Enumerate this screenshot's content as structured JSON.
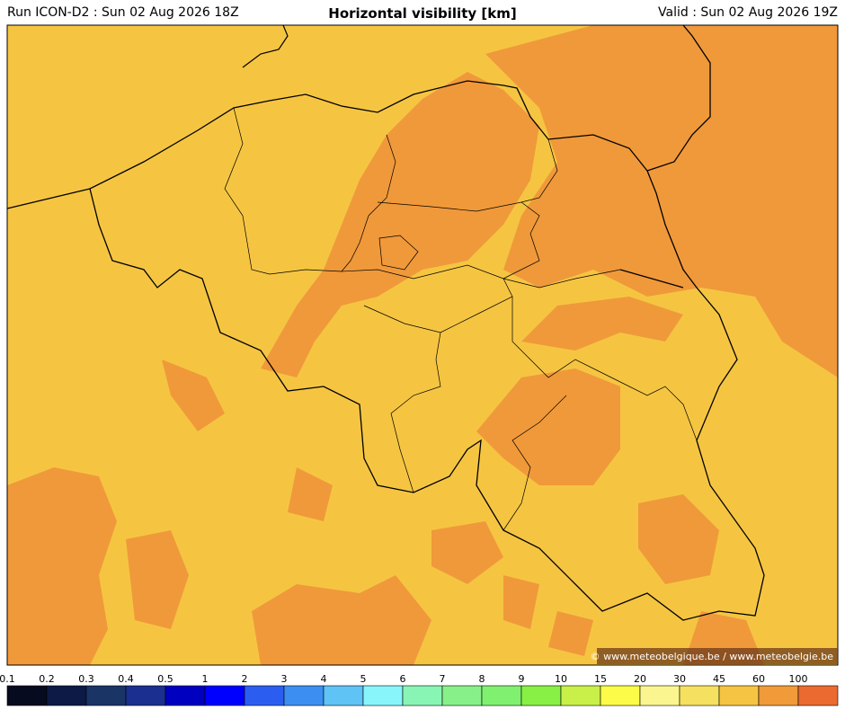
{
  "header": {
    "run": "Run ICON-D2 : Sun 02 Aug 2026 18Z",
    "title": "Horizontal visibility [km]",
    "valid": "Valid : Sun 02 Aug 2026 19Z"
  },
  "map": {
    "credit": "© www.meteobelgique.be / www.meteobelgie.be"
  },
  "colorbar": {
    "items": [
      {
        "label": "0.1",
        "color": "#060b1f"
      },
      {
        "label": "0.2",
        "color": "#0c1a45"
      },
      {
        "label": "0.3",
        "color": "#1a3466"
      },
      {
        "label": "0.4",
        "color": "#1a2f8f"
      },
      {
        "label": "0.5",
        "color": "#0000c0"
      },
      {
        "label": "1",
        "color": "#0000ff"
      },
      {
        "label": "2",
        "color": "#2b5ef0"
      },
      {
        "label": "3",
        "color": "#3c8ff0"
      },
      {
        "label": "4",
        "color": "#5fc3f5"
      },
      {
        "label": "5",
        "color": "#88f5fa"
      },
      {
        "label": "6",
        "color": "#88f5b5"
      },
      {
        "label": "7",
        "color": "#88f088"
      },
      {
        "label": "8",
        "color": "#80f070"
      },
      {
        "label": "9",
        "color": "#88f045"
      },
      {
        "label": "10",
        "color": "#c8f048"
      },
      {
        "label": "15",
        "color": "#fbfb48"
      },
      {
        "label": "20",
        "color": "#fbf590"
      },
      {
        "label": "30",
        "color": "#f5e060"
      },
      {
        "label": "45",
        "color": "#f5c442"
      },
      {
        "label": "60",
        "color": "#f09a3a"
      },
      {
        "label": "100",
        "color": "#eb6a30"
      }
    ]
  }
}
